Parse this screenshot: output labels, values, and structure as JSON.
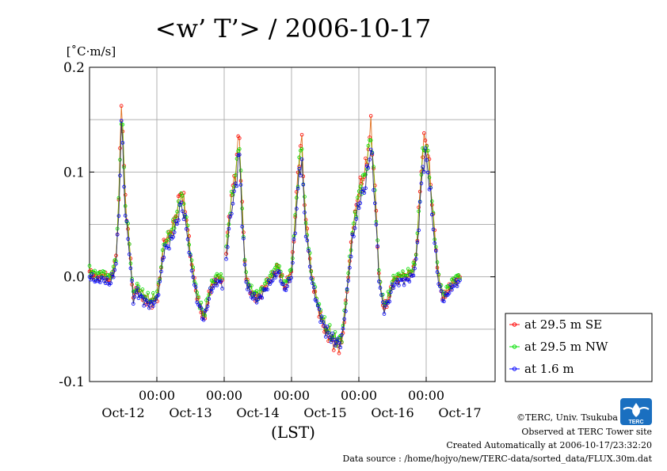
{
  "chart_data": {
    "type": "line",
    "title": "<w’ T’> / 2006-10-17",
    "ylabel": "[˚C·m/s]",
    "xlabel": "(LST)",
    "ylim": [
      -0.1,
      0.2
    ],
    "yticks": [
      "0.2",
      "0.1",
      "0.0",
      "-0.1"
    ],
    "xlim_days": [
      0,
      6
    ],
    "time_ticks": [
      "00:00",
      "00:00",
      "00:00",
      "00:00",
      "00:00"
    ],
    "date_ticks": [
      "Oct-12",
      "Oct-13",
      "Oct-14",
      "Oct-15",
      "Oct-16",
      "Oct-17"
    ],
    "grid": true,
    "legend_position": "right",
    "anchors": [
      [
        0.0,
        0.005
      ],
      [
        0.1,
        0.0
      ],
      [
        0.2,
        0.002
      ],
      [
        0.3,
        -0.003
      ],
      [
        0.35,
        0.005
      ],
      [
        0.4,
        0.02
      ],
      [
        0.45,
        0.1
      ],
      [
        0.47,
        0.165
      ],
      [
        0.5,
        0.13
      ],
      [
        0.53,
        0.07
      ],
      [
        0.58,
        0.04
      ],
      [
        0.65,
        -0.02
      ],
      [
        0.7,
        -0.01
      ],
      [
        0.8,
        -0.02
      ],
      [
        0.9,
        -0.025
      ],
      [
        1.0,
        -0.02
      ],
      [
        1.05,
        0.0
      ],
      [
        1.1,
        0.03
      ],
      [
        1.2,
        0.04
      ],
      [
        1.3,
        0.06
      ],
      [
        1.35,
        0.08
      ],
      [
        1.4,
        0.07
      ],
      [
        1.45,
        0.05
      ],
      [
        1.5,
        0.02
      ],
      [
        1.6,
        -0.02
      ],
      [
        1.7,
        -0.04
      ],
      [
        1.8,
        -0.01
      ],
      [
        1.9,
        0.0
      ],
      [
        2.0,
        -0.005
      ],
      [
        2.05,
        0.04
      ],
      [
        2.12,
        0.08
      ],
      [
        2.18,
        0.1
      ],
      [
        2.22,
        0.14
      ],
      [
        2.27,
        0.06
      ],
      [
        2.32,
        0.0
      ],
      [
        2.4,
        -0.015
      ],
      [
        2.5,
        -0.02
      ],
      [
        2.6,
        -0.01
      ],
      [
        2.7,
        0.0
      ],
      [
        2.8,
        0.01
      ],
      [
        2.9,
        -0.01
      ],
      [
        3.0,
        0.005
      ],
      [
        3.05,
        0.05
      ],
      [
        3.1,
        0.1
      ],
      [
        3.15,
        0.13
      ],
      [
        3.2,
        0.06
      ],
      [
        3.3,
        0.0
      ],
      [
        3.4,
        -0.03
      ],
      [
        3.5,
        -0.05
      ],
      [
        3.6,
        -0.06
      ],
      [
        3.7,
        -0.065
      ],
      [
        3.75,
        -0.06
      ],
      [
        3.8,
        -0.03
      ],
      [
        3.9,
        0.04
      ],
      [
        4.0,
        0.08
      ],
      [
        4.1,
        0.1
      ],
      [
        4.18,
        0.14
      ],
      [
        4.25,
        0.07
      ],
      [
        4.3,
        0.0
      ],
      [
        4.37,
        -0.03
      ],
      [
        4.45,
        -0.02
      ],
      [
        4.5,
        -0.005
      ],
      [
        4.6,
        0.0
      ],
      [
        4.7,
        0.0
      ],
      [
        4.8,
        0.005
      ],
      [
        4.85,
        0.02
      ],
      [
        4.9,
        0.07
      ],
      [
        4.95,
        0.12
      ],
      [
        5.0,
        0.13
      ],
      [
        5.05,
        0.1
      ],
      [
        5.1,
        0.06
      ],
      [
        5.18,
        0.0
      ],
      [
        5.25,
        -0.02
      ],
      [
        5.3,
        -0.015
      ],
      [
        5.4,
        -0.005
      ],
      [
        5.5,
        0.0
      ]
    ],
    "series": [
      {
        "name": "at 29.5 m SE",
        "color": "#ff0000",
        "line_color": "#e07020",
        "scale": 1.03,
        "offset": 0.0
      },
      {
        "name": "at 29.5 m NW",
        "color": "#00e000",
        "line_color": "#80b000",
        "scale": 0.97,
        "offset": 0.002
      },
      {
        "name": "at 1.6 m",
        "color": "#0000ff",
        "line_color": "#303060",
        "scale": 0.92,
        "offset": -0.004
      }
    ]
  },
  "credits": {
    "copyright": "©TERC, Univ. Tsukuba",
    "observed": "Observed at TERC Tower site",
    "created": "Created Automatically at 2006-10-17/23:32:20",
    "source": "Data source : /home/hojyo/new/TERC-data/sorted_data/FLUX.30m.dat",
    "logo_text": "TERC"
  }
}
